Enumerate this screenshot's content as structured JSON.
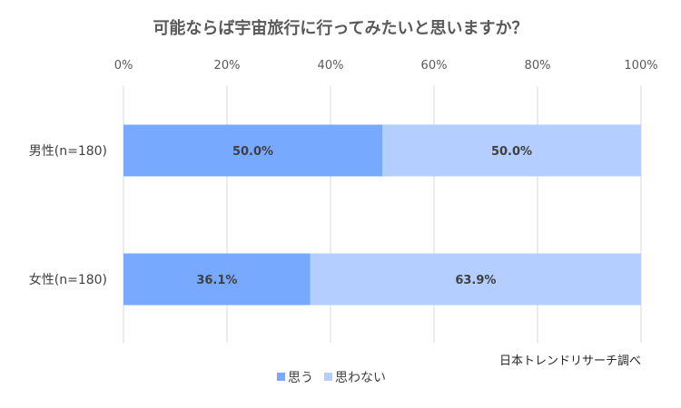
{
  "chart_data": {
    "type": "bar",
    "orientation": "horizontal",
    "stacked": true,
    "percent_stacked": true,
    "title": "可能ならば宇宙旅行に行ってみたいと思いますか？",
    "categories": [
      "男性(n=180)",
      "女性(n=180)"
    ],
    "series": [
      {
        "name": "思う",
        "color": "#77a9ff",
        "values": [
          50.0,
          36.1
        ],
        "labels": [
          "50.0%",
          "36.1%"
        ]
      },
      {
        "name": "思わない",
        "color": "#b3ceff",
        "values": [
          50.0,
          63.9
        ],
        "labels": [
          "50.0%",
          "63.9%"
        ]
      }
    ],
    "xlim": [
      0,
      100
    ],
    "xticks": [
      0,
      20,
      40,
      60,
      80,
      100
    ],
    "xtick_labels": [
      "0%",
      "20%",
      "40%",
      "60%",
      "80%",
      "100%"
    ],
    "grid": true,
    "legend_position": "bottom",
    "source_note": "日本トレンドリサーチ調べ"
  }
}
